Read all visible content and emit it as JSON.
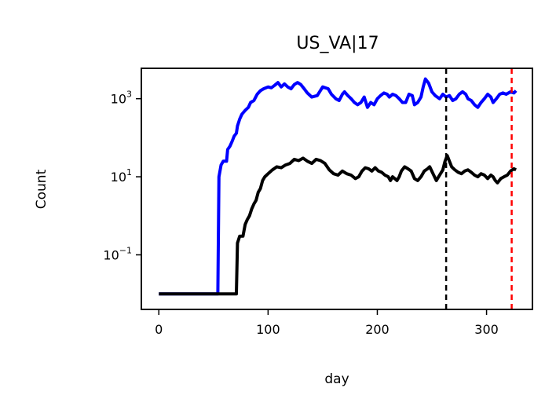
{
  "chart_data": {
    "type": "line",
    "title": "US_VA|17",
    "xlabel": "day",
    "ylabel": "Count",
    "yscale": "log",
    "xlim": [
      -16,
      342
    ],
    "ylim": [
      0.004,
      6000
    ],
    "x_ticks": [
      0,
      100,
      200,
      300
    ],
    "y_ticks": [
      {
        "value": 0.1,
        "base": "10",
        "exp": "−1"
      },
      {
        "value": 10,
        "base": "10",
        "exp": "1"
      },
      {
        "value": 1000,
        "base": "10",
        "exp": "3"
      }
    ],
    "grid": false,
    "legend": "none",
    "vlines": [
      {
        "x": 263,
        "color": "#000000",
        "style": "dashed"
      },
      {
        "x": 323,
        "color": "#ff0000",
        "style": "dashed"
      }
    ],
    "series": [
      {
        "color": "#0000ff",
        "points": [
          [
            0,
            0.01
          ],
          [
            54,
            0.01
          ],
          [
            55,
            10
          ],
          [
            57,
            20
          ],
          [
            59,
            25
          ],
          [
            62,
            25
          ],
          [
            63,
            50
          ],
          [
            65,
            60
          ],
          [
            67,
            80
          ],
          [
            69,
            110
          ],
          [
            71,
            130
          ],
          [
            72,
            200
          ],
          [
            74,
            300
          ],
          [
            76,
            400
          ],
          [
            79,
            500
          ],
          [
            82,
            600
          ],
          [
            84,
            800
          ],
          [
            87,
            900
          ],
          [
            90,
            1300
          ],
          [
            93,
            1600
          ],
          [
            96,
            1800
          ],
          [
            100,
            2000
          ],
          [
            103,
            1900
          ],
          [
            106,
            2200
          ],
          [
            109,
            2600
          ],
          [
            112,
            2000
          ],
          [
            115,
            2400
          ],
          [
            118,
            2000
          ],
          [
            121,
            1800
          ],
          [
            124,
            2300
          ],
          [
            127,
            2600
          ],
          [
            130,
            2300
          ],
          [
            133,
            1800
          ],
          [
            136,
            1400
          ],
          [
            140,
            1100
          ],
          [
            145,
            1200
          ],
          [
            150,
            2000
          ],
          [
            155,
            1800
          ],
          [
            158,
            1300
          ],
          [
            162,
            1000
          ],
          [
            165,
            900
          ],
          [
            168,
            1300
          ],
          [
            170,
            1500
          ],
          [
            173,
            1200
          ],
          [
            176,
            1000
          ],
          [
            179,
            800
          ],
          [
            182,
            700
          ],
          [
            185,
            800
          ],
          [
            188,
            1100
          ],
          [
            191,
            600
          ],
          [
            194,
            800
          ],
          [
            197,
            700
          ],
          [
            200,
            1000
          ],
          [
            203,
            1200
          ],
          [
            206,
            1400
          ],
          [
            209,
            1300
          ],
          [
            211,
            1100
          ],
          [
            214,
            1300
          ],
          [
            217,
            1200
          ],
          [
            220,
            1000
          ],
          [
            223,
            800
          ],
          [
            226,
            800
          ],
          [
            229,
            1300
          ],
          [
            232,
            1200
          ],
          [
            234,
            700
          ],
          [
            237,
            800
          ],
          [
            240,
            1100
          ],
          [
            242,
            2000
          ],
          [
            244,
            3200
          ],
          [
            247,
            2500
          ],
          [
            250,
            1500
          ],
          [
            253,
            1200
          ],
          [
            257,
            1000
          ],
          [
            260,
            1300
          ],
          [
            263,
            1100
          ],
          [
            266,
            1200
          ],
          [
            269,
            900
          ],
          [
            272,
            1000
          ],
          [
            275,
            1300
          ],
          [
            278,
            1500
          ],
          [
            281,
            1300
          ],
          [
            283,
            1000
          ],
          [
            286,
            900
          ],
          [
            289,
            700
          ],
          [
            292,
            600
          ],
          [
            295,
            800
          ],
          [
            298,
            1000
          ],
          [
            301,
            1300
          ],
          [
            304,
            1100
          ],
          [
            306,
            800
          ],
          [
            309,
            1000
          ],
          [
            312,
            1300
          ],
          [
            315,
            1400
          ],
          [
            318,
            1300
          ],
          [
            322,
            1500
          ],
          [
            325,
            1400
          ],
          [
            327,
            1600
          ]
        ]
      },
      {
        "color": "#000000",
        "points": [
          [
            0,
            0.01
          ],
          [
            71,
            0.01
          ],
          [
            72,
            0.2
          ],
          [
            74,
            0.3
          ],
          [
            77,
            0.3
          ],
          [
            79,
            0.6
          ],
          [
            81,
            0.8
          ],
          [
            83,
            1
          ],
          [
            85,
            1.5
          ],
          [
            87,
            2
          ],
          [
            89,
            2.5
          ],
          [
            91,
            4
          ],
          [
            93,
            5
          ],
          [
            95,
            8
          ],
          [
            97,
            10
          ],
          [
            100,
            12
          ],
          [
            104,
            15
          ],
          [
            108,
            18
          ],
          [
            112,
            17
          ],
          [
            116,
            20
          ],
          [
            120,
            22
          ],
          [
            124,
            28
          ],
          [
            128,
            26
          ],
          [
            132,
            30
          ],
          [
            136,
            25
          ],
          [
            140,
            22
          ],
          [
            144,
            28
          ],
          [
            148,
            26
          ],
          [
            152,
            22
          ],
          [
            156,
            15
          ],
          [
            160,
            12
          ],
          [
            164,
            11
          ],
          [
            168,
            14
          ],
          [
            172,
            12
          ],
          [
            176,
            11
          ],
          [
            180,
            9
          ],
          [
            183,
            10
          ],
          [
            186,
            14
          ],
          [
            189,
            17
          ],
          [
            192,
            16
          ],
          [
            195,
            14
          ],
          [
            198,
            17
          ],
          [
            201,
            14
          ],
          [
            204,
            13
          ],
          [
            207,
            11
          ],
          [
            210,
            10
          ],
          [
            212,
            8
          ],
          [
            214,
            10
          ],
          [
            216,
            9
          ],
          [
            218,
            8
          ],
          [
            220,
            10
          ],
          [
            222,
            14
          ],
          [
            225,
            18
          ],
          [
            228,
            16
          ],
          [
            231,
            14
          ],
          [
            234,
            9
          ],
          [
            237,
            8
          ],
          [
            240,
            10
          ],
          [
            243,
            14
          ],
          [
            246,
            16
          ],
          [
            248,
            18
          ],
          [
            251,
            12
          ],
          [
            254,
            8
          ],
          [
            257,
            11
          ],
          [
            260,
            15
          ],
          [
            262,
            25
          ],
          [
            264,
            35
          ],
          [
            266,
            25
          ],
          [
            268,
            18
          ],
          [
            271,
            15
          ],
          [
            274,
            13
          ],
          [
            277,
            12
          ],
          [
            280,
            14
          ],
          [
            283,
            15
          ],
          [
            286,
            13
          ],
          [
            289,
            11
          ],
          [
            292,
            10
          ],
          [
            295,
            12
          ],
          [
            298,
            11
          ],
          [
            301,
            9
          ],
          [
            304,
            11
          ],
          [
            306,
            10
          ],
          [
            308,
            8
          ],
          [
            310,
            7
          ],
          [
            313,
            9
          ],
          [
            316,
            10
          ],
          [
            319,
            11
          ],
          [
            322,
            14
          ],
          [
            325,
            16
          ],
          [
            327,
            15
          ]
        ]
      }
    ]
  }
}
